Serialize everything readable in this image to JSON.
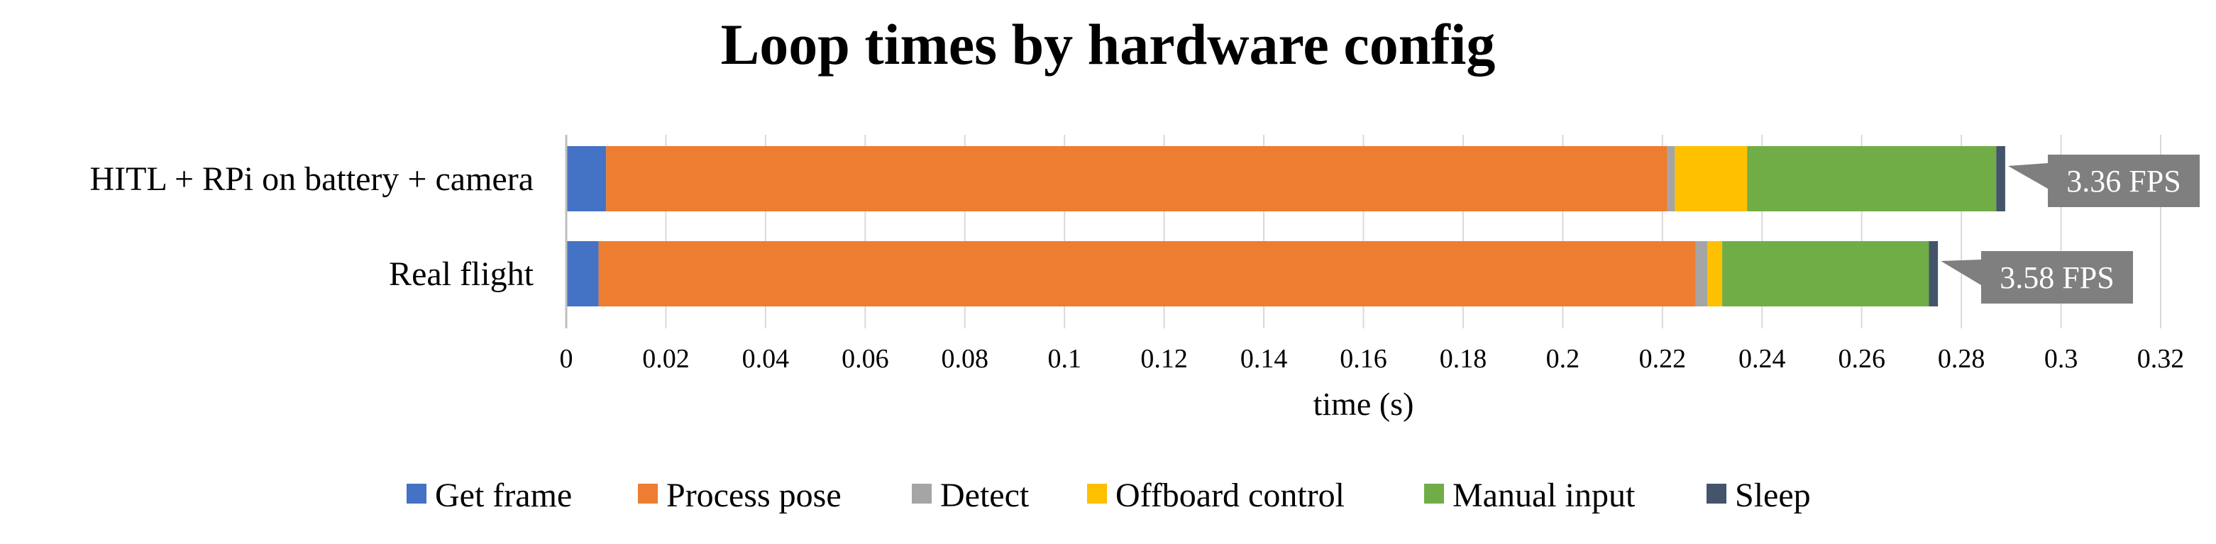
{
  "chart_data": {
    "type": "bar",
    "orientation": "horizontal",
    "stacked": true,
    "title": "Loop times by hardware config",
    "xlabel": "time (s)",
    "ylabel": "",
    "xlim": [
      0,
      0.32
    ],
    "x_ticks": [
      "0",
      "0.02",
      "0.04",
      "0.06",
      "0.08",
      "0.1",
      "0.12",
      "0.14",
      "0.16",
      "0.18",
      "0.2",
      "0.22",
      "0.24",
      "0.26",
      "0.28",
      "0.3",
      "0.32"
    ],
    "grid": true,
    "legend_position": "bottom",
    "categories": [
      "HITL + RPi on battery + camera",
      "Real flight"
    ],
    "series": [
      {
        "name": "Get frame",
        "color": "#4472C4",
        "values": [
          0.008,
          0.0065
        ]
      },
      {
        "name": "Process pose",
        "color": "#ED7D31",
        "values": [
          0.213,
          0.2202
        ]
      },
      {
        "name": "Detect",
        "color": "#A5A5A5",
        "values": [
          0.0015,
          0.0023
        ]
      },
      {
        "name": "Offboard control",
        "color": "#FFC000",
        "values": [
          0.0145,
          0.003
        ]
      },
      {
        "name": "Manual input",
        "color": "#70AD47",
        "values": [
          0.05,
          0.0415
        ]
      },
      {
        "name": "Sleep",
        "color": "#44546A",
        "values": [
          0.0018,
          0.0018
        ]
      }
    ],
    "annotations": [
      {
        "category": "HITL + RPi on battery + camera",
        "text": "3.36 FPS"
      },
      {
        "category": "Real flight",
        "text": "3.58 FPS"
      }
    ]
  }
}
